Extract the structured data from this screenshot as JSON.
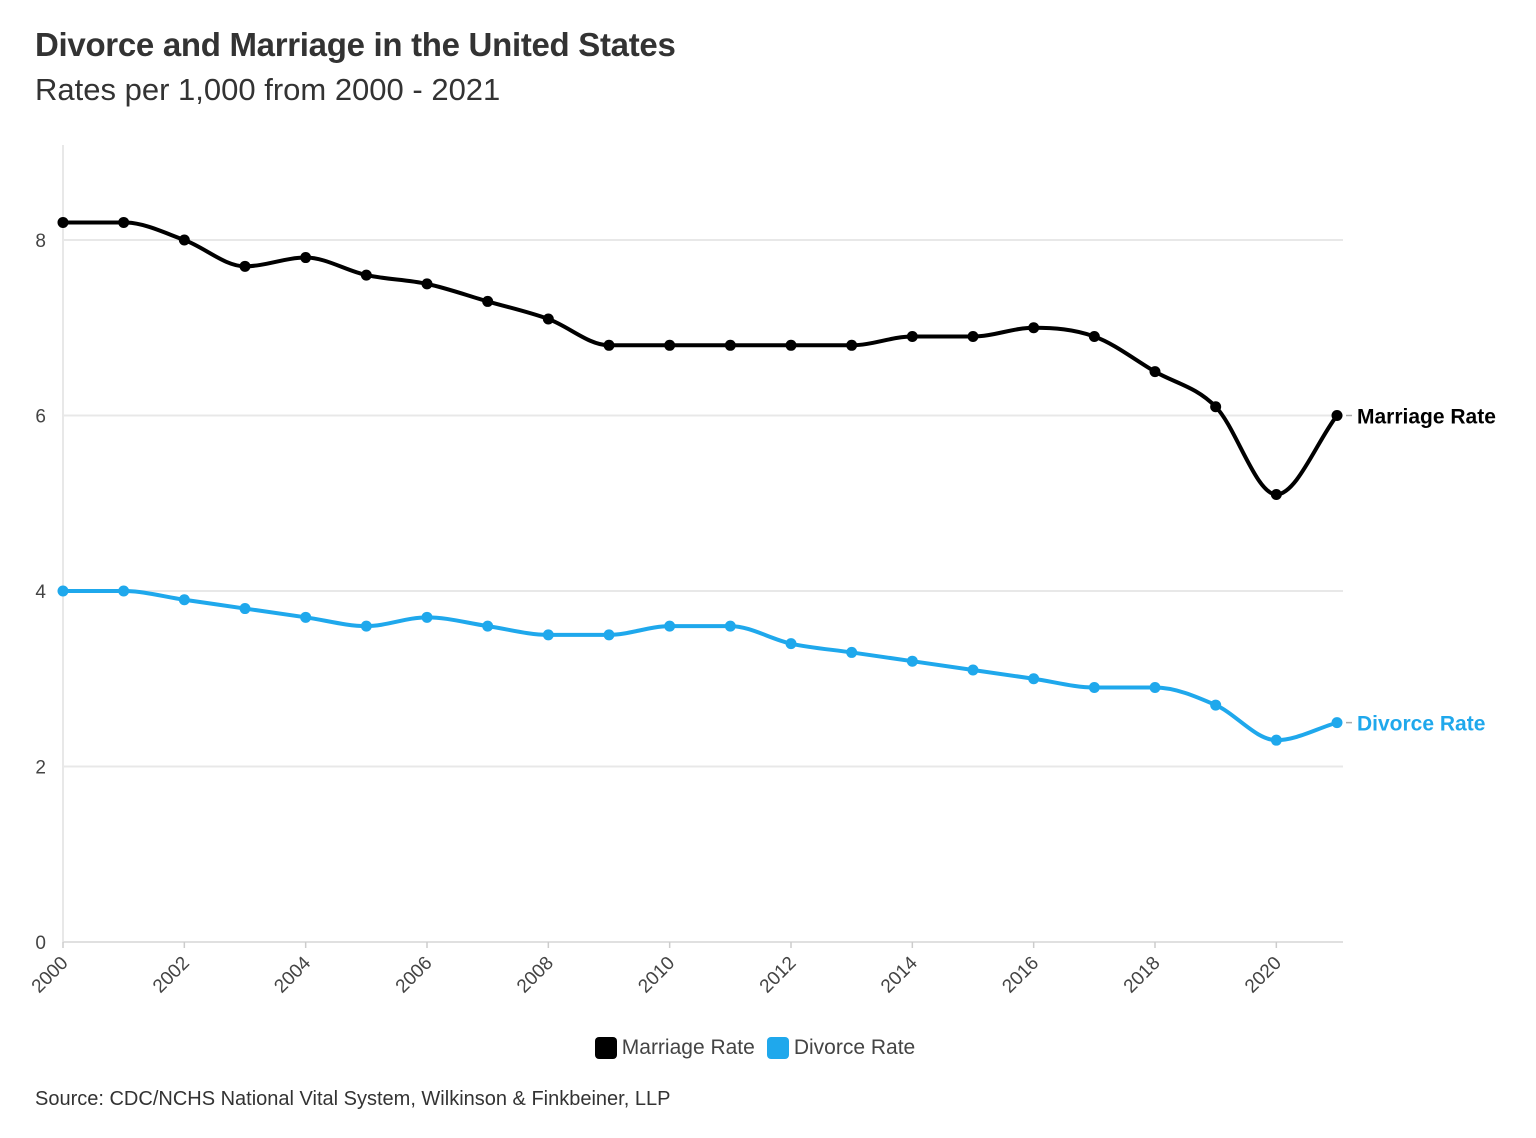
{
  "chart_data": {
    "type": "line",
    "title": "Divorce and Marriage in the United States",
    "subtitle": "Rates per 1,000 from 2000 - 2021",
    "x": [
      2000,
      2001,
      2002,
      2003,
      2004,
      2005,
      2006,
      2007,
      2008,
      2009,
      2010,
      2011,
      2012,
      2013,
      2014,
      2015,
      2016,
      2017,
      2018,
      2019,
      2020,
      2021
    ],
    "x_ticks": [
      "2000",
      "2002",
      "2004",
      "2006",
      "2008",
      "2010",
      "2012",
      "2014",
      "2016",
      "2018",
      "2020"
    ],
    "y_ticks": [
      "0",
      "2",
      "4",
      "6",
      "8"
    ],
    "ylim": [
      0,
      9
    ],
    "xlim": [
      2000,
      2021
    ],
    "grid": "horizontal",
    "legend_placement": "bottom",
    "series": [
      {
        "name": "Marriage Rate",
        "color": "#000000",
        "values": [
          8.2,
          8.2,
          8.0,
          7.7,
          7.8,
          7.6,
          7.5,
          7.3,
          7.1,
          6.8,
          6.8,
          6.8,
          6.8,
          6.8,
          6.9,
          6.9,
          7.0,
          6.9,
          6.5,
          6.1,
          5.1,
          6.0
        ]
      },
      {
        "name": "Divorce Rate",
        "color": "#1fa8ec",
        "values": [
          4.0,
          4.0,
          3.9,
          3.8,
          3.7,
          3.6,
          3.7,
          3.6,
          3.5,
          3.5,
          3.6,
          3.6,
          3.4,
          3.3,
          3.2,
          3.1,
          3.0,
          2.9,
          2.9,
          2.7,
          2.3,
          2.5
        ]
      }
    ],
    "source": "Source: CDC/NCHS National Vital System, Wilkinson & Finkbeiner, LLP"
  }
}
